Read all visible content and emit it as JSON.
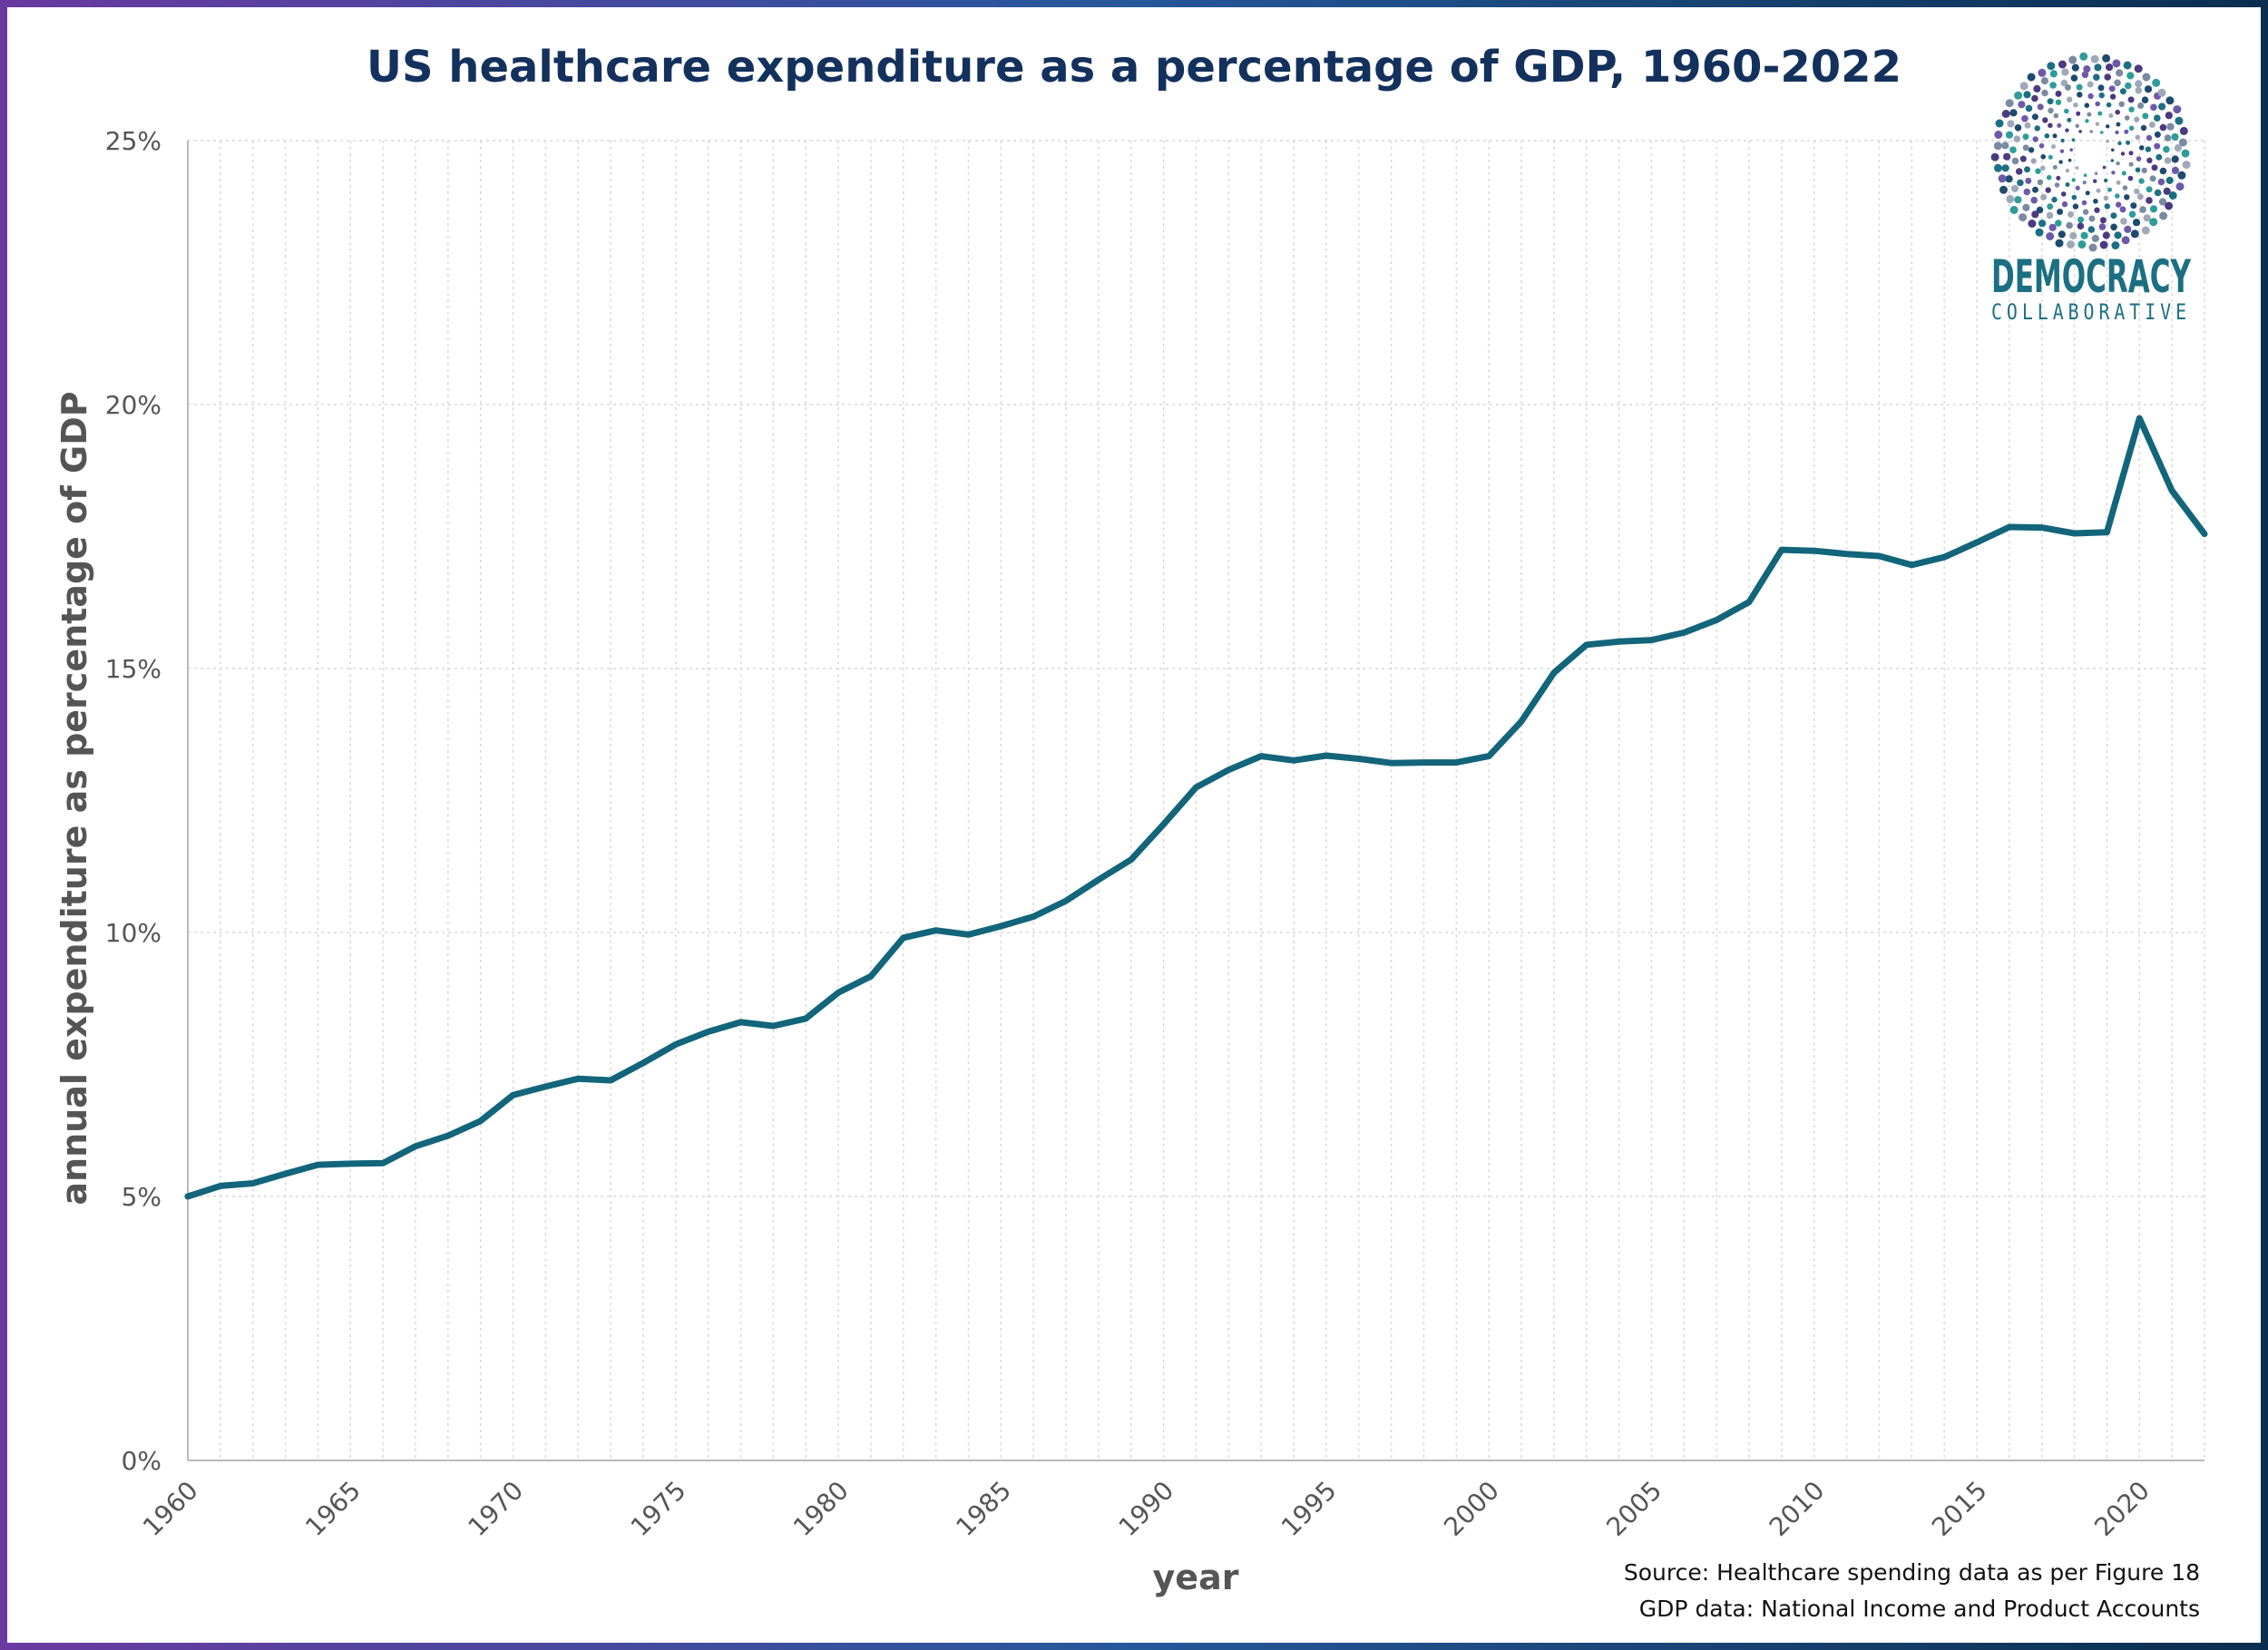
{
  "chart_data": {
    "type": "line",
    "title": "US healthcare expenditure as a percentage of GDP, 1960-2022",
    "xlabel": "year",
    "ylabel": "annual expenditure as percentage of GDP",
    "xlim": [
      1960,
      2022
    ],
    "ylim": [
      0,
      25
    ],
    "x_ticks": [
      "1960",
      "1965",
      "1970",
      "1975",
      "1980",
      "1985",
      "1990",
      "1995",
      "2000",
      "2005",
      "2010",
      "2015",
      "2020"
    ],
    "y_ticks": [
      "0%",
      "5%",
      "10%",
      "15%",
      "20%",
      "25%"
    ],
    "grid": true,
    "series": [
      {
        "color": "#12657a",
        "x": [
          1960,
          1961,
          1962,
          1963,
          1964,
          1965,
          1966,
          1967,
          1968,
          1969,
          1970,
          1971,
          1972,
          1973,
          1974,
          1975,
          1976,
          1977,
          1978,
          1979,
          1980,
          1981,
          1982,
          1983,
          1984,
          1985,
          1986,
          1987,
          1988,
          1989,
          1990,
          1991,
          1992,
          1993,
          1994,
          1995,
          1996,
          1997,
          1998,
          1999,
          2000,
          2001,
          2002,
          2003,
          2004,
          2005,
          2006,
          2007,
          2008,
          2009,
          2010,
          2011,
          2012,
          2013,
          2014,
          2015,
          2016,
          2017,
          2018,
          2019,
          2020,
          2021,
          2022
        ],
        "y": [
          5.0,
          5.2,
          5.25,
          5.43,
          5.6,
          5.62,
          5.63,
          5.95,
          6.15,
          6.43,
          6.92,
          7.08,
          7.23,
          7.2,
          7.53,
          7.88,
          8.12,
          8.3,
          8.23,
          8.37,
          8.86,
          9.17,
          9.9,
          10.04,
          9.96,
          10.12,
          10.3,
          10.6,
          11.0,
          11.38,
          12.05,
          12.75,
          13.08,
          13.34,
          13.26,
          13.35,
          13.29,
          13.21,
          13.22,
          13.22,
          13.34,
          14.0,
          14.92,
          15.45,
          15.51,
          15.54,
          15.68,
          15.92,
          16.26,
          17.25,
          17.23,
          17.17,
          17.13,
          16.96,
          17.11,
          17.39,
          17.68,
          17.67,
          17.56,
          17.58,
          19.74,
          18.37,
          17.55
        ]
      }
    ]
  },
  "source": {
    "line1": "Source: Healthcare spending data as per Figure 18",
    "line2": "GDP data: National Income and Product Accounts"
  },
  "logo": {
    "name": "DEMOCRACY",
    "tagline": "COLLABORATIVE"
  },
  "colors": {
    "border_start": "#6a3aa1",
    "border_end": "#0b2e4f",
    "title": "#13315c",
    "line": "#12657a",
    "logo": "#1c6f82"
  }
}
